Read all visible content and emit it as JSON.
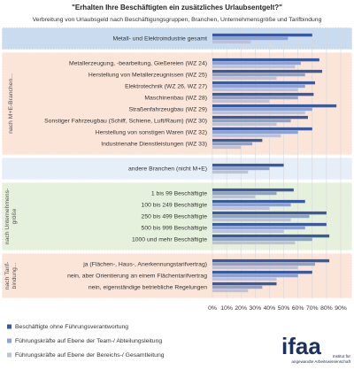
{
  "chart_data": {
    "type": "bar",
    "orientation": "horizontal",
    "title": "\"Erhalten Ihre Beschäftigten ein zusätzliches Urlaubsentgelt?\"",
    "subtitle": "Verbreitung von Urlaubsgeld nach Beschäftigungsgruppen, Branchen, Unternehmensgröße und Tarifbindung",
    "sections": [
      {
        "background": "#c9dbef",
        "categories": [
          "Metall- und Elektroindustrie gesamt"
        ]
      },
      {
        "background": "#fbe4d8",
        "label": [
          "nach M+E-Branchen..."
        ],
        "categories": [
          "Metallerzeugung, -bearbeitung, Gießereien (WZ 24)",
          "Herstellung von Metallerzeugnissen (WZ 25)",
          "Elektrotechnik (WZ 26, WZ 27)",
          "Maschinenbau (WZ 28)",
          "Straßenfahrzeugbau (WZ 29)",
          "Sonstiger Fahrzeugbau (Schiff, Schiene, Luft/Raum) (WZ 30)",
          "Herstellung von sonstigen Waren (WZ 32)",
          "Industrienahe Dienstleistungen (WZ 33)"
        ]
      },
      {
        "background": "#e6eef8",
        "categories": [
          "andere Branchen (nicht M+E)"
        ]
      },
      {
        "background": "#e6f1dd",
        "label": [
          "nach Unternehmens-",
          "größe"
        ],
        "categories": [
          "1 bis 99 Beschäftigte",
          "100 bis 249 Beschäftigte",
          "250 bis 499 Beschäftigte",
          "500 bis 999 Beschäftigte",
          "1000 und mehr Beschäftigte"
        ]
      },
      {
        "background": "#fbe4d8",
        "label": [
          "nach Tarif-",
          "bindung..."
        ],
        "categories": [
          "ja (Flächen-, Haus-, Anerkennungstarifvertrag)",
          "nein, aber Orientierung an einem Flächentarifvertrag",
          "nein, eigenständige betriebliche Regelungen"
        ]
      }
    ],
    "series": [
      {
        "name": "Beschäftigte ohne Führungsverantwortung",
        "color": "#3b5a9b",
        "values": [
          [
            70
          ],
          [
            75,
            77,
            72,
            71,
            87,
            67,
            70,
            35
          ],
          [
            50
          ],
          [
            57,
            65,
            80,
            80,
            82
          ],
          [
            82,
            70,
            45
          ]
        ]
      },
      {
        "name": "Führungskräfte auf Ebene der Team-/ Abteilungsleitung",
        "color": "#8da2d0",
        "values": [
          [
            53
          ],
          [
            62,
            65,
            65,
            60,
            70,
            55,
            60,
            28
          ],
          [
            40
          ],
          [
            45,
            55,
            68,
            65,
            70
          ],
          [
            72,
            60,
            35
          ]
        ]
      },
      {
        "name": "Führungskräfte auf Ebene der Bereichs-/ Gesamtleitung",
        "color": "#bcc3d6",
        "values": [
          [
            27
          ],
          [
            58,
            45,
            60,
            40,
            65,
            45,
            48,
            20
          ],
          [
            25
          ],
          [
            30,
            40,
            55,
            50,
            58
          ],
          [
            60,
            45,
            25
          ]
        ]
      }
    ],
    "xlim": [
      0,
      90
    ],
    "xticks": [
      {
        "value": 0,
        "label": "0%"
      },
      {
        "value": 10,
        "label": "10%"
      },
      {
        "value": 20,
        "label": "20%"
      },
      {
        "value": 30,
        "label": "30%"
      },
      {
        "value": 40,
        "label": "40%"
      },
      {
        "value": 50,
        "label": "50%"
      },
      {
        "value": 60,
        "label": "60%"
      },
      {
        "value": 70,
        "label": "70%"
      },
      {
        "value": 80,
        "label": "80%"
      },
      {
        "value": 90,
        "label": "90%"
      }
    ],
    "grid": true
  },
  "logo": {
    "name": "ifaa",
    "tagline": [
      "Institut für",
      "angewandte Arbeitswissenschaft"
    ]
  }
}
